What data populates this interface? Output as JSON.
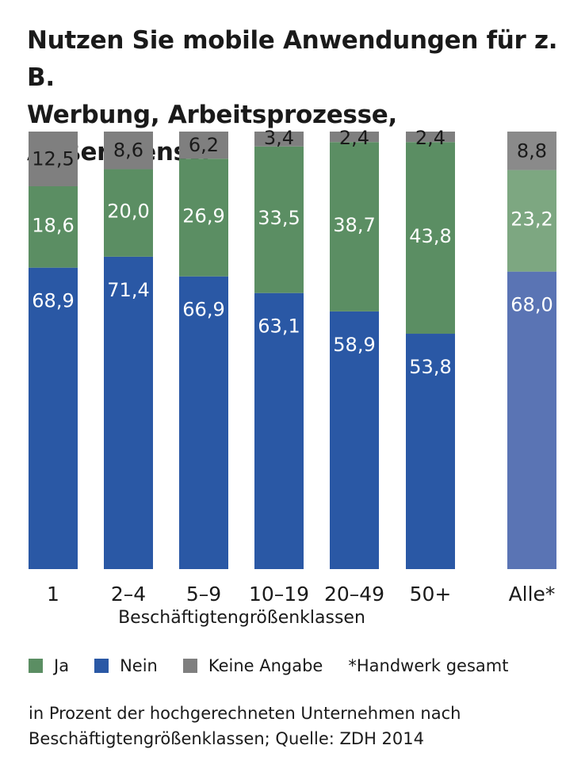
{
  "colors": {
    "ja": "#5b8e63",
    "nein": "#2a58a5",
    "keine": "#7f7f7f",
    "ja_alle": "#7da781",
    "nein_alle": "#5a74b4",
    "keine_alle": "#8a8a8a",
    "label_light": "#ffffff",
    "label_dark": "#1a1a1a"
  },
  "chart_data": {
    "type": "bar",
    "stacked": true,
    "title": "Nutzen Sie mobile Anwendungen für z. B. Werbung, Arbeitsprozesse, Außendienst?",
    "xlabel": "Beschäftigtengrößenklassen",
    "ylabel": "",
    "ylim": [
      0,
      100
    ],
    "categories": [
      "1",
      "2–4",
      "5–9",
      "10–19",
      "20–49",
      "50+",
      "Alle*"
    ],
    "series": [
      {
        "key": "nein",
        "name": "Nein",
        "values": [
          68.9,
          71.4,
          66.9,
          63.1,
          58.9,
          53.8,
          68.0
        ],
        "labels": [
          "68,9",
          "71,4",
          "66,9",
          "63,1",
          "58,9",
          "53,8",
          "68,0"
        ]
      },
      {
        "key": "ja",
        "name": "Ja",
        "values": [
          18.6,
          20.0,
          26.9,
          33.5,
          38.7,
          43.8,
          23.2
        ],
        "labels": [
          "18,6",
          "20,0",
          "26,9",
          "33,5",
          "38,7",
          "43,8",
          "23,2"
        ]
      },
      {
        "key": "keine",
        "name": "Keine Angabe",
        "values": [
          12.5,
          8.6,
          6.2,
          3.4,
          2.4,
          2.4,
          8.8
        ],
        "labels": [
          "12,5",
          "8,6",
          "6,2",
          "3,4",
          "2,4",
          "2,4",
          "8,8"
        ]
      }
    ],
    "legend": {
      "position": "bottom",
      "entries": [
        "Ja",
        "Nein",
        "Keine Angabe"
      ],
      "note": "*Handwerk gesamt"
    },
    "footnote": "in Prozent der hochgerechneten Unternehmen nach Beschäftigtengrößenklassen; Quelle: ZDH 2014"
  },
  "title_line1": "Nutzen Sie mobile Anwendungen für z. B.",
  "title_line2": "Werbung, Arbeitsprozesse, Außendienst?",
  "footnote_line1": "in Prozent der hochgerechneten Unternehmen nach",
  "footnote_line2": "Beschäftigtengrößenklassen; Quelle: ZDH 2014"
}
